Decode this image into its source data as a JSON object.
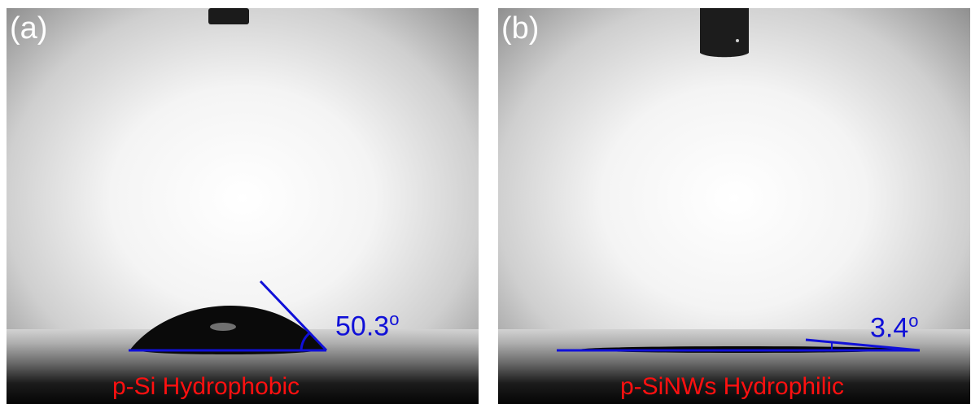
{
  "panels": [
    {
      "label": "(a)",
      "angle_value": "50.3",
      "angle_unit": "o",
      "caption": "p-Si Hydrophobic"
    },
    {
      "label": "(b)",
      "angle_value": "3.4",
      "angle_unit": "o",
      "caption": "p-SiNWs Hydrophilic"
    }
  ],
  "colors": {
    "caption": "#ff1010",
    "annotation": "#1010d8",
    "label": "#ffffff"
  }
}
